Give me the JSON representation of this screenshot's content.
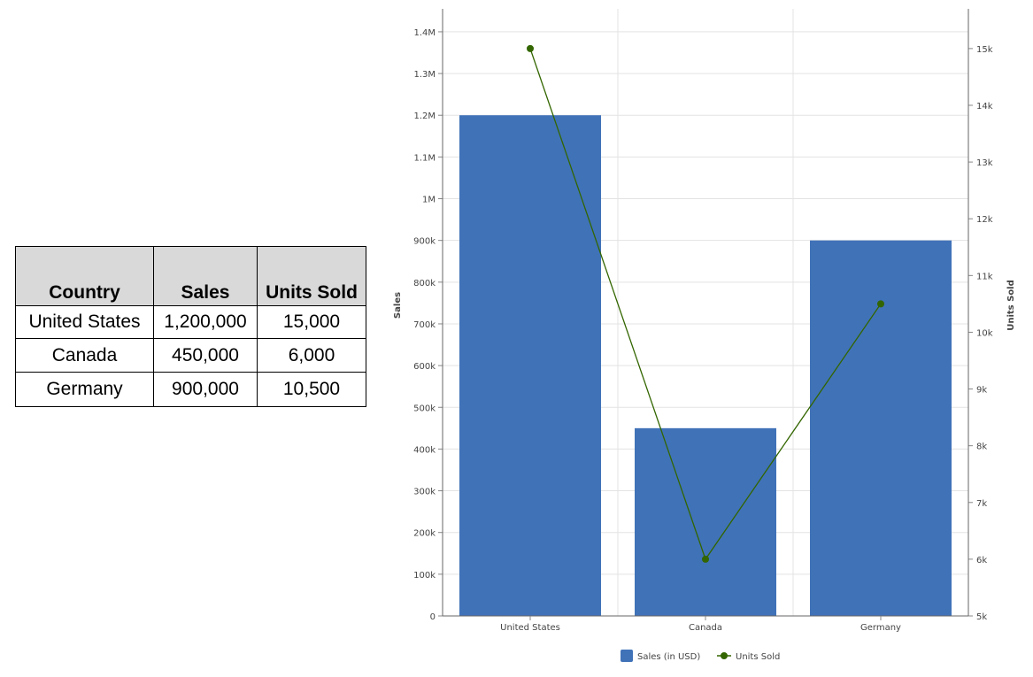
{
  "table": {
    "headers": [
      "Country",
      "Sales",
      "Units Sold"
    ],
    "rows": [
      [
        "United States",
        "1,200,000",
        "15,000"
      ],
      [
        "Canada",
        "450,000",
        "6,000"
      ],
      [
        "Germany",
        "900,000",
        "10,500"
      ]
    ]
  },
  "chart_data": {
    "type": "bar+line",
    "categories": [
      "United States",
      "Canada",
      "Germany"
    ],
    "series": [
      {
        "name": "Sales (in USD)",
        "type": "bar",
        "axis": "left",
        "values": [
          1200000,
          450000,
          900000
        ],
        "color": "#4072b8"
      },
      {
        "name": "Units Sold",
        "type": "line",
        "axis": "right",
        "values": [
          15000,
          6000,
          10500
        ],
        "color": "#336600"
      }
    ],
    "ylabel": "Sales",
    "y2label": "Units Sold",
    "ylim": [
      0,
      1455000
    ],
    "y2lim": [
      5000,
      15700
    ],
    "yticks": [
      0,
      100000,
      200000,
      300000,
      400000,
      500000,
      600000,
      700000,
      800000,
      900000,
      1000000,
      1100000,
      1200000,
      1300000,
      1400000
    ],
    "ytick_labels": [
      "0",
      "100k",
      "200k",
      "300k",
      "400k",
      "500k",
      "600k",
      "700k",
      "800k",
      "900k",
      "1M",
      "1.1M",
      "1.2M",
      "1.3M",
      "1.4M"
    ],
    "y2ticks": [
      5000,
      6000,
      7000,
      8000,
      9000,
      10000,
      11000,
      12000,
      13000,
      14000,
      15000
    ],
    "y2tick_labels": [
      "5k",
      "6k",
      "7k",
      "8k",
      "9k",
      "10k",
      "11k",
      "12k",
      "13k",
      "14k",
      "15k"
    ],
    "grid": true,
    "legend": "bottom"
  }
}
